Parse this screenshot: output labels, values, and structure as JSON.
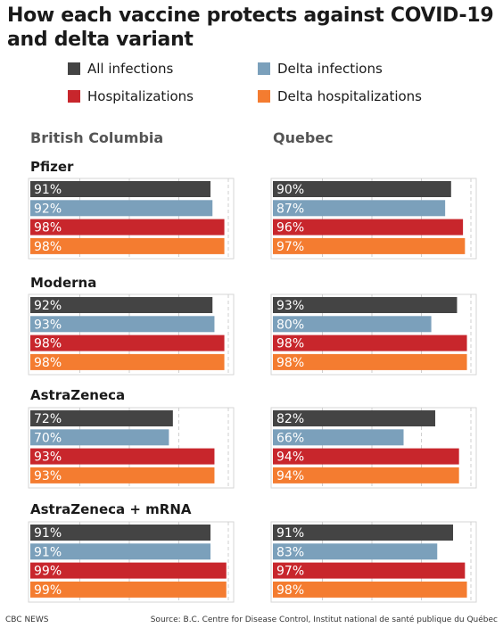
{
  "title": "How each vaccine protects against COVID-19 and delta variant",
  "footer": {
    "credit": "CBC NEWS",
    "source": "Source: B.C. Centre for Disease Control, Institut national de santé publique du Québec"
  },
  "colors": {
    "all_infections": "#444444",
    "delta_infections": "#7ba0bb",
    "hospitalizations": "#c8262c",
    "delta_hospitalizations": "#f47c30"
  },
  "chart_data": {
    "type": "bar",
    "orientation": "horizontal",
    "legend": [
      "All infections",
      "Delta infections",
      "Hospitalizations",
      "Delta hospitalizations"
    ],
    "value_suffix": "%",
    "xlim": [
      0,
      100
    ],
    "regions": [
      "British Columbia",
      "Quebec"
    ],
    "groups": [
      {
        "name": "Pfizer",
        "british_columbia": [
          91,
          92,
          98,
          98
        ],
        "quebec": [
          90,
          87,
          96,
          97
        ]
      },
      {
        "name": "Moderna",
        "british_columbia": [
          92,
          93,
          98,
          98
        ],
        "quebec": [
          93,
          80,
          98,
          98
        ]
      },
      {
        "name": "AstraZeneca",
        "british_columbia": [
          72,
          70,
          93,
          93
        ],
        "quebec": [
          82,
          66,
          94,
          94
        ]
      },
      {
        "name": "AstraZeneca + mRNA",
        "british_columbia": [
          91,
          91,
          99,
          99
        ],
        "quebec": [
          91,
          83,
          97,
          98
        ]
      }
    ]
  }
}
